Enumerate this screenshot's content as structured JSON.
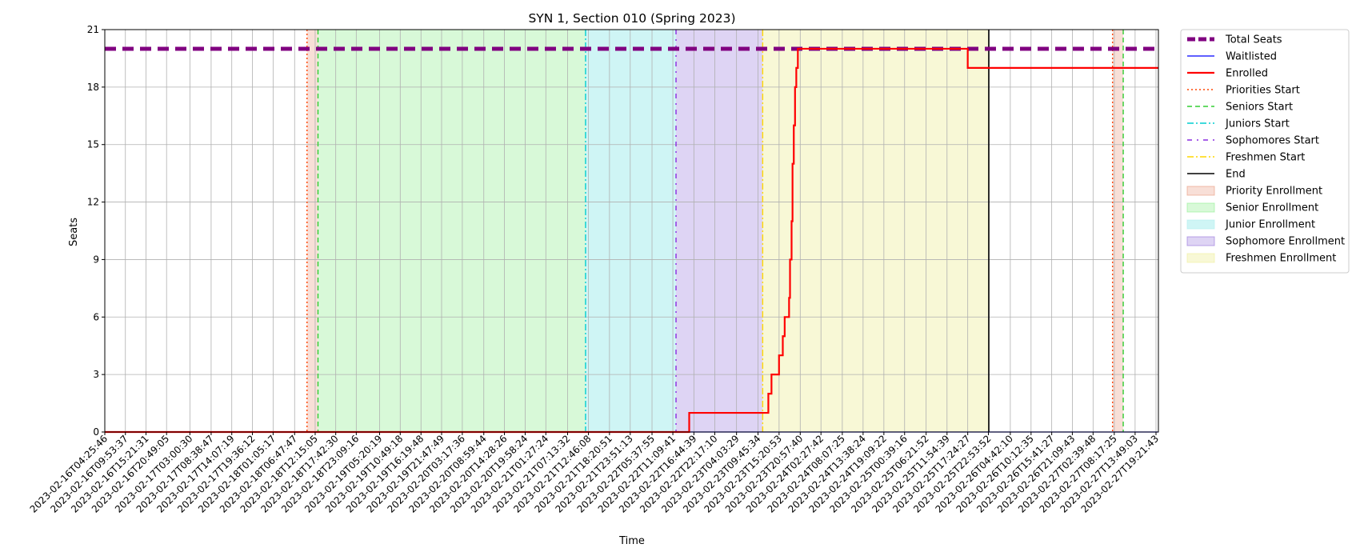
{
  "chart_data": {
    "type": "line",
    "title": "SYN 1, Section 010 (Spring 2023)",
    "xlabel": "Time",
    "ylabel": "Seats",
    "ylim": [
      0,
      21
    ],
    "y_ticks": [
      0,
      3,
      6,
      9,
      12,
      15,
      18,
      21
    ],
    "grid": true,
    "legend_position": "outside-right-top",
    "x_range": [
      "2023-02-16T04:25:46",
      "2023-02-27T20:00:00"
    ],
    "x_ticks": [
      "2023-02-16T04:25:46",
      "2023-02-16T09:53:37",
      "2023-02-16T15:21:31",
      "2023-02-16T20:49:05",
      "2023-02-17T03:00:30",
      "2023-02-17T08:38:47",
      "2023-02-17T14:07:19",
      "2023-02-17T19:36:12",
      "2023-02-18T01:05:17",
      "2023-02-18T06:47:47",
      "2023-02-18T12:15:05",
      "2023-02-18T17:42:30",
      "2023-02-18T23:09:16",
      "2023-02-19T05:20:19",
      "2023-02-19T10:49:18",
      "2023-02-19T16:19:48",
      "2023-02-19T21:47:49",
      "2023-02-20T03:17:36",
      "2023-02-20T08:59:44",
      "2023-02-20T14:28:26",
      "2023-02-20T19:58:24",
      "2023-02-21T01:27:24",
      "2023-02-21T07:13:32",
      "2023-02-21T12:46:08",
      "2023-02-21T18:20:51",
      "2023-02-21T23:51:13",
      "2023-02-22T05:37:55",
      "2023-02-22T11:09:41",
      "2023-02-22T16:44:39",
      "2023-02-22T22:17:10",
      "2023-02-23T04:03:29",
      "2023-02-23T09:45:34",
      "2023-02-23T15:20:53",
      "2023-02-23T20:57:40",
      "2023-02-24T02:27:42",
      "2023-02-24T08:07:25",
      "2023-02-24T13:38:24",
      "2023-02-24T19:09:22",
      "2023-02-25T00:39:16",
      "2023-02-25T06:21:52",
      "2023-02-25T11:54:39",
      "2023-02-25T17:24:27",
      "2023-02-25T22:53:52",
      "2023-02-26T04:42:10",
      "2023-02-26T10:12:35",
      "2023-02-26T15:41:27",
      "2023-02-26T21:09:43",
      "2023-02-27T02:39:48",
      "2023-02-27T08:17:25",
      "2023-02-27T13:49:03",
      "2023-02-27T19:21:43"
    ],
    "series": [
      {
        "name": "Total Seats",
        "color": "#800080",
        "style": "dashed-thick",
        "points": [
          [
            "2023-02-16T04:25:46",
            20
          ],
          [
            "2023-02-27T20:00:00",
            20
          ]
        ]
      },
      {
        "name": "Waitlisted",
        "color": "#0000ff",
        "style": "solid",
        "points": [
          [
            "2023-02-16T04:25:46",
            0
          ],
          [
            "2023-02-27T20:00:00",
            0
          ]
        ]
      },
      {
        "name": "Enrolled",
        "color": "#ff0000",
        "style": "solid-step",
        "points": [
          [
            "2023-02-16T04:25:46",
            0
          ],
          [
            "2023-02-22T15:30:00",
            0
          ],
          [
            "2023-02-22T15:30:00",
            1
          ],
          [
            "2023-02-23T12:30:00",
            1
          ],
          [
            "2023-02-23T12:30:00",
            2
          ],
          [
            "2023-02-23T13:20:00",
            2
          ],
          [
            "2023-02-23T13:20:00",
            3
          ],
          [
            "2023-02-23T15:20:00",
            3
          ],
          [
            "2023-02-23T15:20:00",
            4
          ],
          [
            "2023-02-23T16:20:00",
            4
          ],
          [
            "2023-02-23T16:20:00",
            5
          ],
          [
            "2023-02-23T16:50:00",
            5
          ],
          [
            "2023-02-23T16:50:00",
            6
          ],
          [
            "2023-02-23T18:00:00",
            6
          ],
          [
            "2023-02-23T18:00:00",
            7
          ],
          [
            "2023-02-23T18:15:00",
            7
          ],
          [
            "2023-02-23T18:15:00",
            9
          ],
          [
            "2023-02-23T18:40:00",
            9
          ],
          [
            "2023-02-23T18:40:00",
            11
          ],
          [
            "2023-02-23T18:55:00",
            11
          ],
          [
            "2023-02-23T18:55:00",
            14
          ],
          [
            "2023-02-23T19:15:00",
            14
          ],
          [
            "2023-02-23T19:15:00",
            16
          ],
          [
            "2023-02-23T19:35:00",
            16
          ],
          [
            "2023-02-23T19:35:00",
            18
          ],
          [
            "2023-02-23T19:55:00",
            18
          ],
          [
            "2023-02-23T19:55:00",
            19
          ],
          [
            "2023-02-23T20:20:00",
            19
          ],
          [
            "2023-02-23T20:20:00",
            20
          ],
          [
            "2023-02-25T17:24:27",
            20
          ],
          [
            "2023-02-25T17:24:27",
            19
          ],
          [
            "2023-02-27T20:00:00",
            19
          ]
        ]
      }
    ],
    "vertical_lines": [
      {
        "name": "Priorities Start",
        "color": "#ff4500",
        "style": "dotted",
        "x": [
          "2023-02-18T10:05:00",
          "2023-02-27T07:50:00"
        ]
      },
      {
        "name": "Seniors Start",
        "color": "#32cd32",
        "style": "dashed",
        "x": [
          "2023-02-18T13:00:00",
          "2023-02-27T10:40:00"
        ]
      },
      {
        "name": "Juniors Start",
        "color": "#00ced1",
        "style": "dashdot",
        "x": [
          "2023-02-21T12:00:00"
        ]
      },
      {
        "name": "Sophomores Start",
        "color": "#8a2be2",
        "style": "dashdot-sparse",
        "x": [
          "2023-02-22T12:00:00"
        ]
      },
      {
        "name": "Freshmen Start",
        "color": "#ffd700",
        "style": "dashdot",
        "x": [
          "2023-02-23T11:00:00"
        ]
      },
      {
        "name": "End",
        "color": "#000000",
        "style": "solid",
        "x": [
          "2023-02-25T23:00:00"
        ]
      }
    ],
    "shaded_periods": [
      {
        "name": "Priority Enrollment",
        "color": "#e9967a",
        "opacity": 0.3,
        "ranges": [
          [
            "2023-02-18T10:05:00",
            "2023-02-18T13:00:00"
          ],
          [
            "2023-02-27T07:50:00",
            "2023-02-27T10:40:00"
          ]
        ]
      },
      {
        "name": "Senior Enrollment",
        "color": "#90ee90",
        "opacity": 0.35,
        "ranges": [
          [
            "2023-02-18T13:00:00",
            "2023-02-21T12:00:00"
          ]
        ]
      },
      {
        "name": "Junior Enrollment",
        "color": "#afeeee",
        "opacity": 0.6,
        "ranges": [
          [
            "2023-02-21T12:00:00",
            "2023-02-22T12:00:00"
          ]
        ]
      },
      {
        "name": "Sophomore Enrollment",
        "color": "#9370db",
        "opacity": 0.3,
        "ranges": [
          [
            "2023-02-22T12:00:00",
            "2023-02-23T11:00:00"
          ]
        ]
      },
      {
        "name": "Freshmen Enrollment",
        "color": "#eeee99",
        "opacity": 0.4,
        "ranges": [
          [
            "2023-02-23T11:00:00",
            "2023-02-25T23:00:00"
          ]
        ]
      }
    ]
  }
}
